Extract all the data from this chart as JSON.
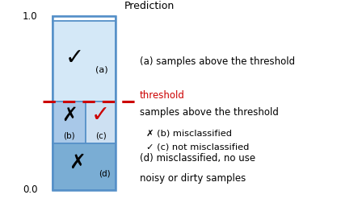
{
  "fig_width": 4.22,
  "fig_height": 2.52,
  "dpi": 100,
  "top_box_color": "#d4e8f7",
  "mid_left_color": "#a8c8e8",
  "mid_right_color": "#cde0f2",
  "bottom_box_color": "#7aadd4",
  "outline_color": "#5590c8",
  "white_top_color": "#ffffff",
  "threshold_line_color": "#cc0000",
  "prediction_label": "Prediction",
  "annotation_a": "(a) samples above the threshold",
  "annotation_thresh": "threshold",
  "annotation_bc_title": "samples above the threshold",
  "annotation_b": "✗ (b) misclassified",
  "annotation_c": "✓ (c) not misclassified",
  "annotation_d1": "(d) misclassified, no use",
  "annotation_d2": "noisy or dirty samples"
}
